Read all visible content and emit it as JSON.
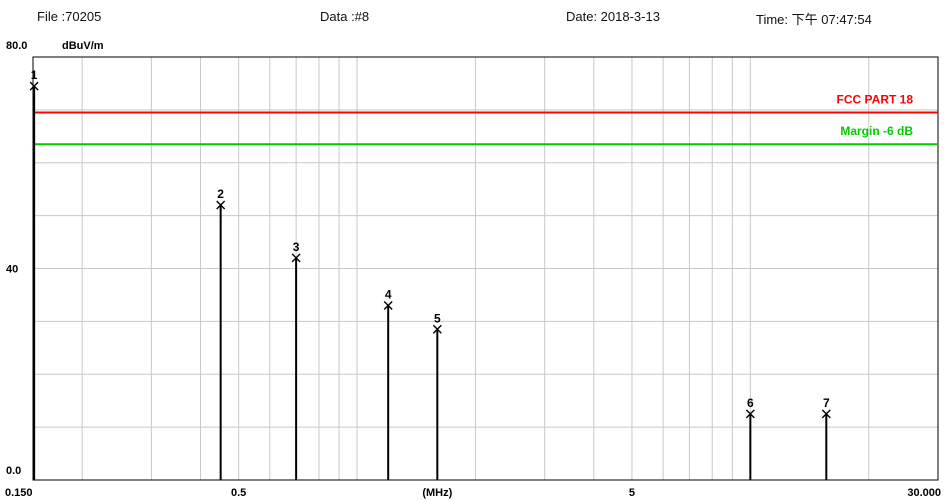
{
  "header": {
    "file": "File :70205",
    "data": "Data :#8",
    "date": "Date: 2018-3-13",
    "time": "Time: 下午 07:47:54"
  },
  "chart_data": {
    "type": "line",
    "ylabel": "dBuV/m",
    "xlabel": "(MHz)",
    "x_scale": "log",
    "xlim": [
      0.15,
      30
    ],
    "ylim": [
      0,
      80
    ],
    "y_tick_labels": [
      "80.0",
      "40",
      "0.0"
    ],
    "y_tick_values": [
      80,
      40,
      0
    ],
    "x_tick_labels": [
      "0.150",
      "0.5",
      "(MHz)",
      "5",
      "30.000"
    ],
    "x_tick_values": [
      0.15,
      0.5,
      1.6,
      5,
      30
    ],
    "grid": true,
    "limit_lines": [
      {
        "name": "FCC PART 18",
        "value": 69.5,
        "color": "#ff0000"
      },
      {
        "name": "Margin -6 dB",
        "value": 63.5,
        "color": "#00cc00"
      }
    ],
    "markers": {
      "labels": [
        "1",
        "2",
        "3",
        "4",
        "5",
        "6",
        "7"
      ],
      "x": [
        0.151,
        0.45,
        0.7,
        1.2,
        1.6,
        10.0,
        15.6
      ],
      "y": [
        74.5,
        52.0,
        42.0,
        33.0,
        28.5,
        12.5,
        12.5
      ]
    }
  }
}
